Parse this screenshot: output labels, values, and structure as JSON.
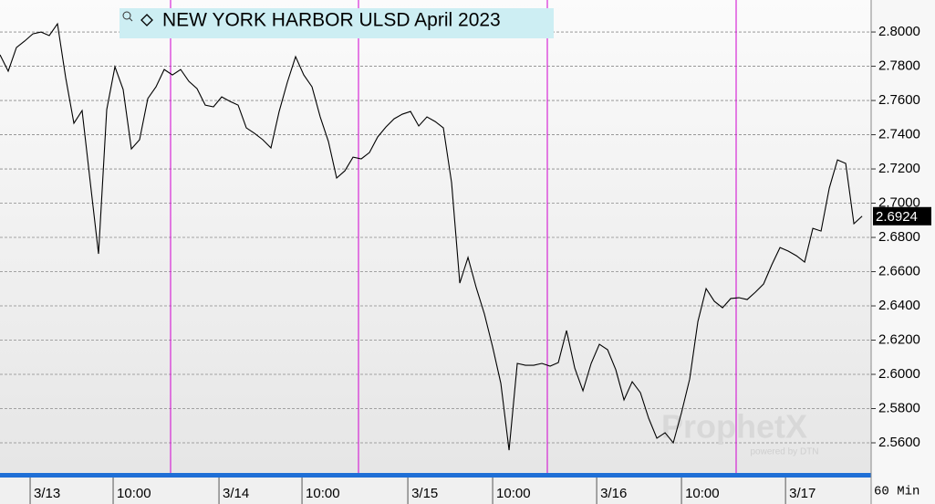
{
  "chart_data": {
    "type": "line",
    "title": "NEW YORK HARBOR ULSD April 2023",
    "x": [
      0,
      1,
      2,
      3,
      4,
      5,
      6,
      7,
      8,
      9,
      10,
      11,
      12,
      13,
      14,
      15,
      16,
      17,
      18,
      19,
      20,
      21,
      22,
      23,
      24,
      25,
      26,
      27,
      28,
      29,
      30,
      31,
      32,
      33,
      34,
      35,
      36,
      37,
      38,
      39,
      40,
      41,
      42,
      43,
      44,
      45,
      46,
      47,
      48,
      49,
      50,
      51,
      52,
      53,
      54,
      55,
      56,
      57,
      58,
      59,
      60,
      61,
      62,
      63,
      64,
      65,
      66,
      67,
      68,
      69,
      70,
      71,
      72,
      73,
      74,
      75,
      76,
      77,
      78,
      79,
      80,
      81,
      82,
      83,
      84,
      85,
      86,
      87,
      88,
      89,
      90,
      91,
      92,
      93,
      94,
      95,
      96,
      97,
      98,
      99,
      100,
      101,
      102,
      103,
      104,
      105
    ],
    "series": [
      {
        "color": "#000000",
        "values": [
          2.7867,
          2.7771,
          2.7909,
          2.7947,
          2.7989,
          2.8,
          2.7979,
          2.8048,
          2.7733,
          2.7467,
          2.7541,
          2.712,
          2.6704,
          2.7547,
          2.7797,
          2.7664,
          2.7317,
          2.7371,
          2.7611,
          2.768,
          2.7781,
          2.7749,
          2.7781,
          2.7712,
          2.7669,
          2.7573,
          2.7563,
          2.7621,
          2.7595,
          2.7573,
          2.744,
          2.7408,
          2.7371,
          2.7323,
          2.7536,
          2.7707,
          2.7856,
          2.7749,
          2.768,
          2.7504,
          2.736,
          2.7147,
          2.7189,
          2.7269,
          2.7259,
          2.7296,
          2.7387,
          2.7445,
          2.7493,
          2.752,
          2.7536,
          2.7451,
          2.7504,
          2.7477,
          2.744,
          2.712,
          2.6533,
          2.6683,
          2.6507,
          2.6352,
          2.616,
          2.5947,
          2.5557,
          2.6064,
          2.6053,
          2.6053,
          2.6064,
          2.6048,
          2.6069,
          2.6256,
          2.6037,
          2.5904,
          2.6064,
          2.6176,
          2.6144,
          2.6027,
          2.5851,
          2.5957,
          2.5893,
          2.5744,
          2.5627,
          2.5659,
          2.56,
          2.5776,
          2.5973,
          2.6309,
          2.6501,
          2.6427,
          2.6389,
          2.6443,
          2.6448,
          2.6437,
          2.648,
          2.6528,
          2.664,
          2.6741,
          2.672,
          2.6693,
          2.6656,
          2.6853,
          2.6837,
          2.7088,
          2.7253,
          2.7232,
          2.688,
          2.6924
        ]
      }
    ],
    "xlim": [
      0,
      106.1
    ],
    "xticks": [
      {
        "value": 3.67,
        "label": "3/13"
      },
      {
        "value": 13.78,
        "label": "10:00"
      },
      {
        "value": 26.67,
        "label": "3/14"
      },
      {
        "value": 36.78,
        "label": "10:00"
      },
      {
        "value": 49.67,
        "label": "3/15"
      },
      {
        "value": 60,
        "label": "10:00"
      },
      {
        "value": 72.67,
        "label": "3/16"
      },
      {
        "value": 83,
        "label": "10:00"
      },
      {
        "value": 95.67,
        "label": "3/17"
      }
    ],
    "ylim": [
      2.5424,
      2.8187
    ],
    "yticks": [
      {
        "value": 2.56,
        "label": "2.5600"
      },
      {
        "value": 2.58,
        "label": "2.5800"
      },
      {
        "value": 2.6,
        "label": "2.6000"
      },
      {
        "value": 2.62,
        "label": "2.6200"
      },
      {
        "value": 2.64,
        "label": "2.6400"
      },
      {
        "value": 2.66,
        "label": "2.6600"
      },
      {
        "value": 2.68,
        "label": "2.6800"
      },
      {
        "value": 2.7,
        "label": "2.7000"
      },
      {
        "value": 2.72,
        "label": "2.7200"
      },
      {
        "value": 2.74,
        "label": "2.7400"
      },
      {
        "value": 2.76,
        "label": "2.7600"
      },
      {
        "value": 2.78,
        "label": "2.7800"
      },
      {
        "value": 2.8,
        "label": "2.8000"
      }
    ],
    "grid": true,
    "last_price": 2.6924,
    "interval": "60 Min",
    "watermark": {
      "brand": "ProphetX",
      "tagline": "powered by DTN"
    }
  }
}
